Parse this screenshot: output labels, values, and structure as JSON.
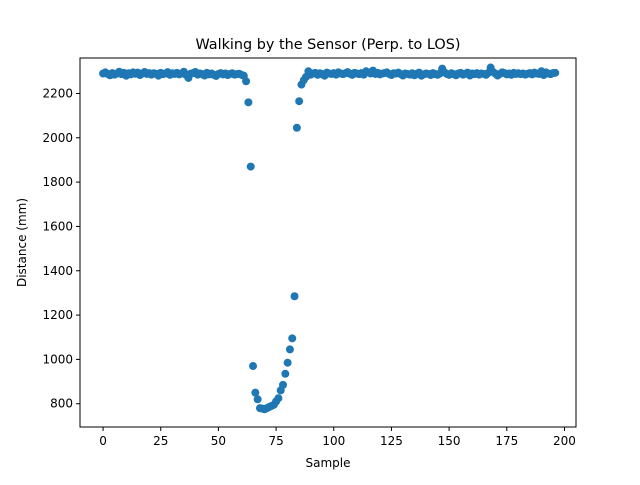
{
  "chart_data": {
    "type": "scatter",
    "title": "Walking by the Sensor (Perp. to LOS)",
    "xlabel": "Sample",
    "ylabel": "Distance (mm)",
    "xlim": [
      -10,
      205
    ],
    "ylim": [
      695,
      2360
    ],
    "xticks": [
      0,
      25,
      50,
      75,
      100,
      125,
      150,
      175,
      200
    ],
    "yticks": [
      800,
      1000,
      1200,
      1400,
      1600,
      1800,
      2000,
      2200
    ],
    "grid": false,
    "marker_color": "#1f77b4",
    "series": [
      {
        "x": [
          0,
          1,
          2,
          3,
          4,
          5,
          6,
          7,
          8,
          9,
          10,
          11,
          12,
          13,
          14,
          15,
          16,
          17,
          18,
          19,
          20,
          21,
          22,
          23,
          24,
          25,
          26,
          27,
          28,
          29,
          30,
          31,
          32,
          33,
          34,
          35,
          36,
          37,
          38,
          39,
          40,
          41,
          42,
          43,
          44,
          45,
          46,
          47,
          48,
          49,
          50,
          51,
          52,
          53,
          54,
          55,
          56,
          57,
          58,
          59,
          60,
          61,
          62,
          63,
          64,
          65,
          66,
          67,
          68,
          69,
          70,
          71,
          72,
          73,
          74,
          75,
          76,
          77,
          78,
          79,
          80,
          81,
          82,
          83,
          84,
          85,
          86,
          87,
          88,
          89,
          90,
          91,
          92,
          93,
          94,
          95,
          96,
          97,
          98,
          99,
          100,
          101,
          102,
          103,
          104,
          105,
          106,
          107,
          108,
          109,
          110,
          111,
          112,
          113,
          114,
          115,
          116,
          117,
          118,
          119,
          120,
          121,
          122,
          123,
          124,
          125,
          126,
          127,
          128,
          129,
          130,
          131,
          132,
          133,
          134,
          135,
          136,
          137,
          138,
          139,
          140,
          141,
          142,
          143,
          144,
          145,
          146,
          147,
          148,
          149,
          150,
          151,
          152,
          153,
          154,
          155,
          156,
          157,
          158,
          159,
          160,
          161,
          162,
          163,
          164,
          165,
          166,
          167,
          168,
          169,
          170,
          171,
          172,
          173,
          174,
          175,
          176,
          177,
          178,
          179,
          180,
          181,
          182,
          183,
          184,
          185,
          186,
          187,
          188,
          189,
          190,
          191,
          192,
          193,
          194,
          195,
          196
        ],
        "y": [
          2290,
          2295,
          2288,
          2282,
          2292,
          2285,
          2290,
          2298,
          2287,
          2293,
          2280,
          2291,
          2286,
          2295,
          2289,
          2294,
          2283,
          2290,
          2297,
          2288,
          2292,
          2285,
          2291,
          2289,
          2280,
          2293,
          2287,
          2290,
          2296,
          2284,
          2291,
          2288,
          2293,
          2286,
          2290,
          2298,
          2283,
          2270,
          2289,
          2292,
          2297,
          2285,
          2290,
          2287,
          2281,
          2293,
          2286,
          2290,
          2284,
          2279,
          2288,
          2292,
          2286,
          2290,
          2283,
          2288,
          2291,
          2285,
          2287,
          2289,
          2284,
          2280,
          2255,
          2160,
          1870,
          970,
          850,
          820,
          780,
          778,
          775,
          780,
          785,
          790,
          795,
          810,
          825,
          860,
          885,
          935,
          985,
          1045,
          1095,
          1285,
          2045,
          2165,
          2240,
          2260,
          2275,
          2300,
          2285,
          2290,
          2293,
          2284,
          2291,
          2287,
          2280,
          2294,
          2290,
          2288,
          2292,
          2285,
          2295,
          2290,
          2287,
          2291,
          2296,
          2289,
          2284,
          2293,
          2290,
          2287,
          2292,
          2285,
          2300,
          2295,
          2290,
          2303,
          2288,
          2293,
          2286,
          2290,
          2292,
          2295,
          2288,
          2283,
          2291,
          2290,
          2294,
          2287,
          2281,
          2290,
          2288,
          2285,
          2291,
          2282,
          2289,
          2294,
          2280,
          2286,
          2290,
          2288,
          2283,
          2292,
          2287,
          2284,
          2290,
          2312,
          2295,
          2288,
          2284,
          2291,
          2287,
          2282,
          2290,
          2293,
          2285,
          2289,
          2294,
          2281,
          2290,
          2287,
          2292,
          2285,
          2290,
          2288,
          2284,
          2293,
          2317,
          2297,
          2290,
          2281,
          2288,
          2295,
          2292,
          2286,
          2290,
          2284,
          2293,
          2288,
          2291,
          2287,
          2290,
          2285,
          2289,
          2292,
          2286,
          2294,
          2290,
          2288,
          2300,
          2283,
          2295,
          2290,
          2287,
          2292,
          2293
        ]
      }
    ]
  }
}
